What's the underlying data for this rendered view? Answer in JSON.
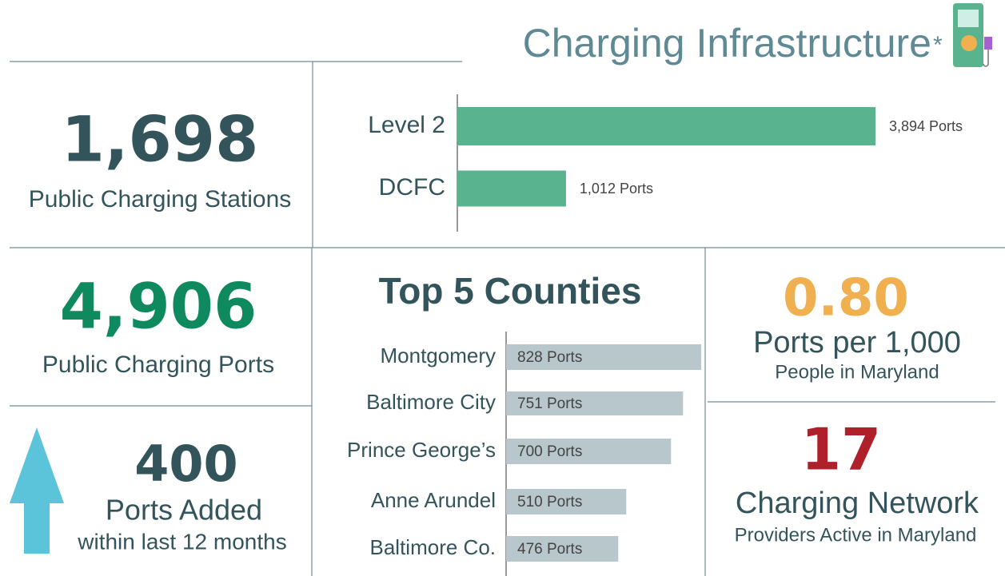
{
  "header": {
    "title": "Charging Infrastructure",
    "asterisk": "*"
  },
  "stats": {
    "stations": {
      "value": "1,698",
      "label": "Public Charging Stations"
    },
    "ports": {
      "value": "4,906",
      "label": "Public Charging Ports"
    },
    "added": {
      "value": "400",
      "label": "Ports Added",
      "sublabel": "within last 12 months"
    },
    "per_capita": {
      "value": "0.80",
      "label": "Ports per 1,000",
      "sublabel": "People in Maryland"
    },
    "networks": {
      "value": "17",
      "label": "Charging Network",
      "sublabel": "Providers Active in Maryland"
    }
  },
  "chart_data": [
    {
      "type": "bar",
      "orientation": "horizontal",
      "categories": [
        "Level 2",
        "DCFC"
      ],
      "values": [
        3894,
        1012
      ],
      "value_labels": [
        "3,894 Ports",
        "1,012 Ports"
      ],
      "color": "#5ab38f"
    },
    {
      "type": "bar",
      "orientation": "horizontal",
      "title": "Top 5 Counties",
      "categories": [
        "Montgomery",
        "Baltimore City",
        "Prince George’s",
        "Anne Arundel",
        "Baltimore Co."
      ],
      "values": [
        828,
        751,
        700,
        510,
        476
      ],
      "value_labels": [
        "828 Ports",
        "751 Ports",
        "700 Ports",
        "510 Ports",
        "476 Ports"
      ],
      "color": "#b7c7cb"
    }
  ]
}
